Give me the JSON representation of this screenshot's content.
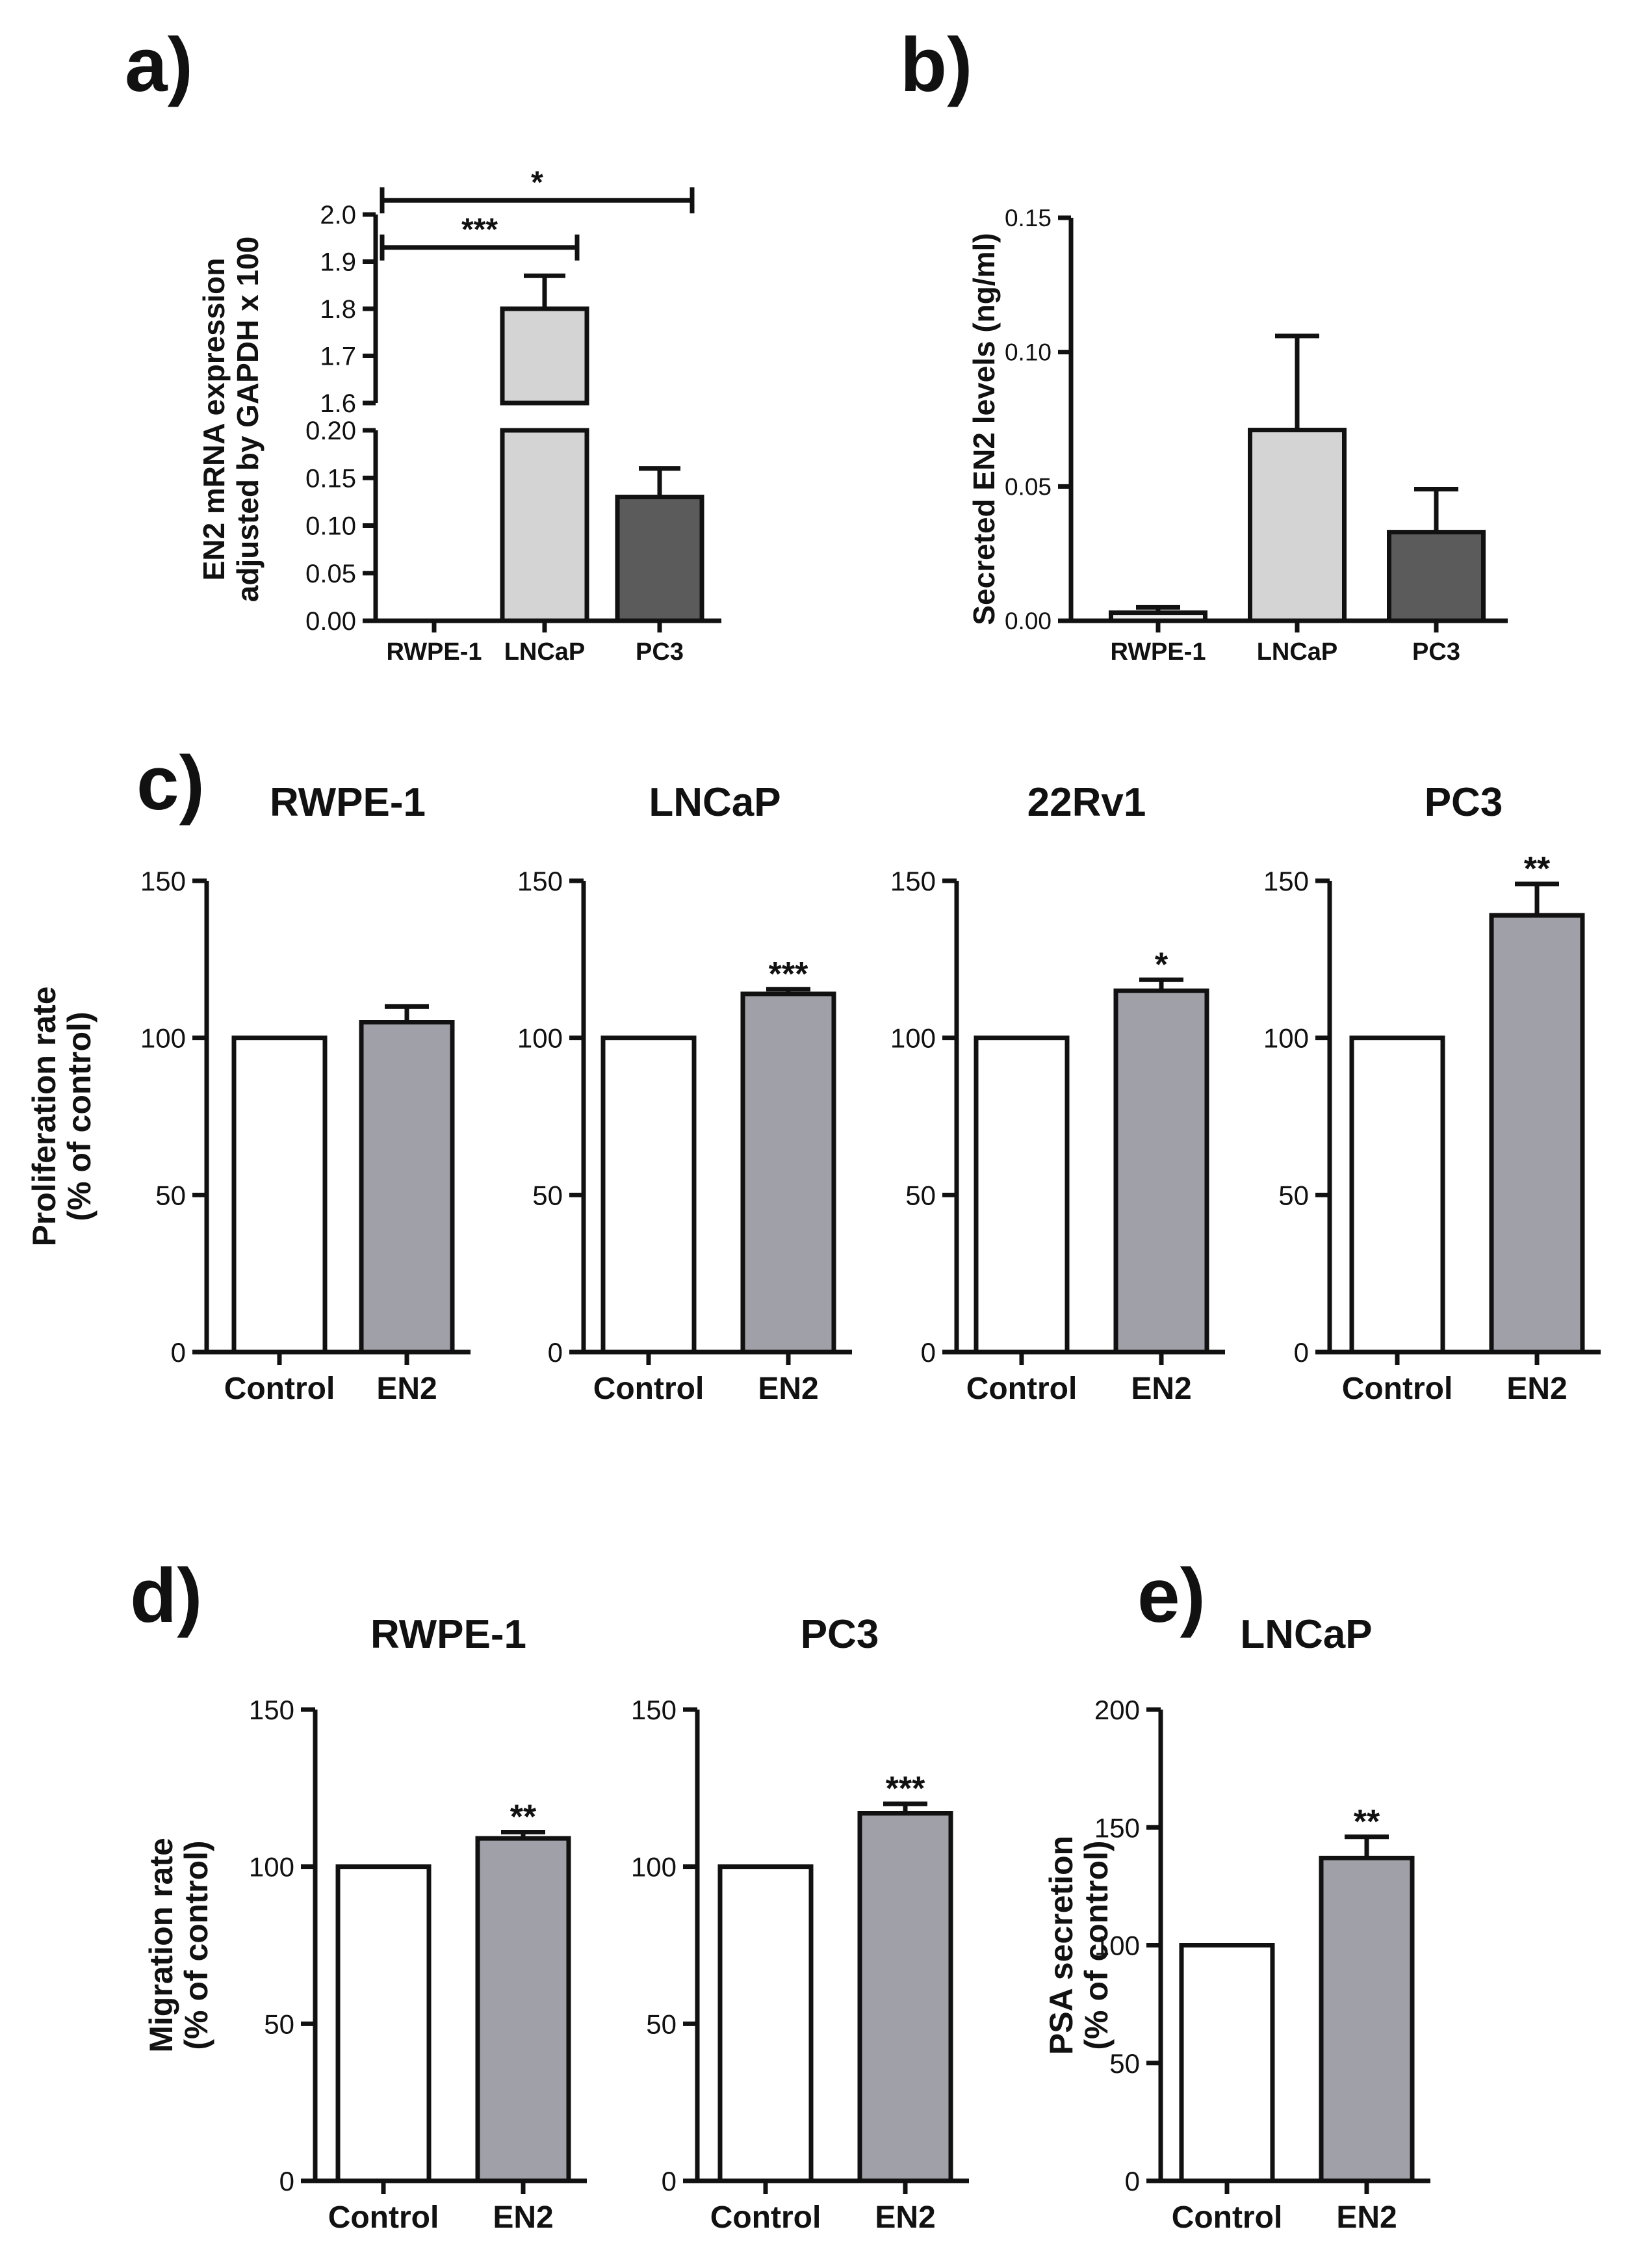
{
  "panel_labels": [
    "a)",
    "b)",
    "c)",
    "d)",
    "e)"
  ],
  "colors": {
    "control": "#ffffff",
    "en2": "#a0a0a8",
    "lncap": "#d4d4d4",
    "pc3": "#5b5b5b",
    "rwpe1": "#f0f0f0",
    "axis": "#111111"
  },
  "chart_data": [
    {
      "id": "a",
      "type": "bar",
      "title": "",
      "ylabel_lines": [
        "EN2 mRNA expression",
        "adjusted by GAPDH x 100"
      ],
      "categories": [
        "RWPE-1",
        "LNCaP",
        "PC3"
      ],
      "values": [
        0.0,
        1.8,
        0.13
      ],
      "errors": [
        0.0,
        0.07,
        0.03
      ],
      "broken_axis": {
        "lower": {
          "range": [
            0,
            0.2
          ],
          "ticks": [
            "0.00",
            "0.05",
            "0.10",
            "0.15",
            "0.20"
          ]
        },
        "upper": {
          "range": [
            1.6,
            2.0
          ],
          "ticks": [
            "1.6",
            "1.7",
            "1.8",
            "1.9",
            "2.0"
          ]
        }
      },
      "significance": [
        {
          "from": "RWPE-1",
          "to": "LNCaP",
          "label": "***",
          "y": 1.93
        },
        {
          "from": "RWPE-1",
          "to": "PC3",
          "label": "*",
          "y": 2.03
        }
      ]
    },
    {
      "id": "b",
      "type": "bar",
      "title": "",
      "ylabel_lines": [
        "Secreted EN2 levels (ng/ml)"
      ],
      "categories": [
        "RWPE-1",
        "LNCaP",
        "PC3"
      ],
      "values": [
        0.003,
        0.071,
        0.033
      ],
      "errors": [
        0.002,
        0.035,
        0.016
      ],
      "ylim": [
        0,
        0.15
      ],
      "ticks": [
        "0.00",
        "0.05",
        "0.10",
        "0.15"
      ]
    },
    {
      "id": "c1",
      "type": "bar",
      "title": "RWPE-1",
      "ylabel_lines": [
        "Proliferation rate",
        "(% of control)"
      ],
      "categories": [
        "Control",
        "EN2"
      ],
      "values": [
        100,
        105
      ],
      "errors": [
        0,
        5
      ],
      "significance": [
        "",
        ""
      ],
      "ylim": [
        0,
        150
      ],
      "ticks": [
        "0",
        "50",
        "100",
        "150"
      ]
    },
    {
      "id": "c2",
      "type": "bar",
      "title": "LNCaP",
      "ylabel_lines": [],
      "categories": [
        "Control",
        "EN2"
      ],
      "values": [
        100,
        114
      ],
      "errors": [
        0,
        1.5
      ],
      "significance": [
        "",
        "***"
      ],
      "ylim": [
        0,
        150
      ],
      "ticks": [
        "0",
        "50",
        "100",
        "150"
      ]
    },
    {
      "id": "c3",
      "type": "bar",
      "title": "22Rv1",
      "ylabel_lines": [],
      "categories": [
        "Control",
        "EN2"
      ],
      "values": [
        100,
        115
      ],
      "errors": [
        0,
        3.5
      ],
      "significance": [
        "",
        "*"
      ],
      "ylim": [
        0,
        150
      ],
      "ticks": [
        "0",
        "50",
        "100",
        "150"
      ]
    },
    {
      "id": "c4",
      "type": "bar",
      "title": "PC3",
      "ylabel_lines": [],
      "categories": [
        "Control",
        "EN2"
      ],
      "values": [
        100,
        139
      ],
      "errors": [
        0,
        10
      ],
      "significance": [
        "",
        "**"
      ],
      "ylim": [
        0,
        150
      ],
      "ticks": [
        "0",
        "50",
        "100",
        "150"
      ]
    },
    {
      "id": "d1",
      "type": "bar",
      "title": "RWPE-1",
      "ylabel_lines": [
        "Migration rate",
        "(% of control)"
      ],
      "categories": [
        "Control",
        "EN2"
      ],
      "values": [
        100,
        109
      ],
      "errors": [
        0,
        2
      ],
      "significance": [
        "",
        "**"
      ],
      "ylim": [
        0,
        150
      ],
      "ticks": [
        "0",
        "50",
        "100",
        "150"
      ]
    },
    {
      "id": "d2",
      "type": "bar",
      "title": "PC3",
      "ylabel_lines": [],
      "categories": [
        "Control",
        "EN2"
      ],
      "values": [
        100,
        117
      ],
      "errors": [
        0,
        3
      ],
      "significance": [
        "",
        "***"
      ],
      "ylim": [
        0,
        150
      ],
      "ticks": [
        "0",
        "50",
        "100",
        "150"
      ]
    },
    {
      "id": "e",
      "type": "bar",
      "title": "LNCaP",
      "ylabel_lines": [
        "PSA secretion",
        "(% of control)"
      ],
      "categories": [
        "Control",
        "EN2"
      ],
      "values": [
        100,
        137
      ],
      "errors": [
        0,
        9
      ],
      "significance": [
        "",
        "**"
      ],
      "ylim": [
        0,
        200
      ],
      "ticks": [
        "0",
        "50",
        "100",
        "150",
        "200"
      ]
    }
  ]
}
